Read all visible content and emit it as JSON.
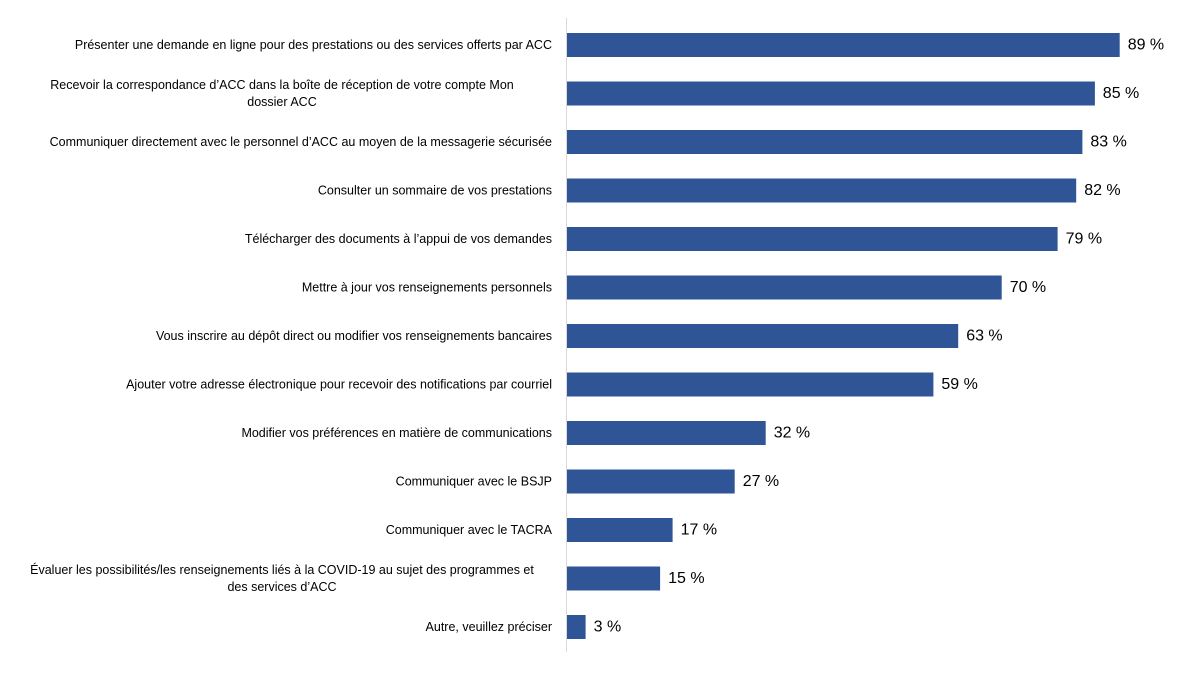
{
  "chart_data": {
    "type": "bar",
    "orientation": "horizontal",
    "title": "",
    "xlabel": "",
    "ylabel": "",
    "xlim": [
      0,
      100
    ],
    "grid": false,
    "legend": "none",
    "value_suffix": " %",
    "bar_color": "#2f5597",
    "categories": [
      "Présenter une demande en ligne pour des prestations ou des services offerts par ACC",
      "Recevoir la correspondance d’ACC dans la boîte de réception de votre compte Mon dossier ACC",
      "Communiquer directement avec le personnel d’ACC au moyen de la messagerie sécurisée",
      "Consulter un sommaire de vos prestations",
      "Télécharger des documents à l’appui de vos demandes",
      "Mettre à jour vos renseignements personnels",
      "Vous inscrire au dépôt direct ou modifier vos renseignements bancaires",
      "Ajouter votre adresse électronique pour recevoir des notifications par courriel",
      "Modifier vos préférences en matière de communications",
      "Communiquer avec le BSJP",
      "Communiquer avec le TACRA",
      "Évaluer les possibilités/les renseignements liés à la COVID-19 au sujet des programmes et des services d’ACC",
      "Autre, veuillez préciser"
    ],
    "category_lines": [
      [
        "Présenter une demande en ligne pour des prestations ou des services offerts par ACC"
      ],
      [
        "Recevoir la correspondance d’ACC dans la boîte de réception de votre compte Mon",
        "dossier ACC"
      ],
      [
        "Communiquer directement avec le personnel d’ACC au moyen de la messagerie sécurisée"
      ],
      [
        "Consulter un sommaire de vos prestations"
      ],
      [
        "Télécharger des documents à l’appui de vos demandes"
      ],
      [
        "Mettre à jour vos renseignements personnels"
      ],
      [
        "Vous inscrire au dépôt direct ou modifier vos renseignements bancaires"
      ],
      [
        "Ajouter votre adresse électronique pour recevoir des notifications par courriel"
      ],
      [
        "Modifier vos préférences en matière de communications"
      ],
      [
        "Communiquer avec le BSJP"
      ],
      [
        "Communiquer avec le TACRA"
      ],
      [
        "Évaluer les possibilités/les renseignements liés à la COVID-19 au sujet des programmes et",
        "des services d’ACC"
      ],
      [
        "Autre, veuillez préciser"
      ]
    ],
    "values": [
      89,
      85,
      83,
      82,
      79,
      70,
      63,
      59,
      32,
      27,
      17,
      15,
      3
    ],
    "value_labels": [
      "89 %",
      "85 %",
      "83 %",
      "82 %",
      "79 %",
      "70 %",
      "63 %",
      "59 %",
      "32 %",
      "27 %",
      "17 %",
      "15 %",
      "3 %"
    ]
  }
}
